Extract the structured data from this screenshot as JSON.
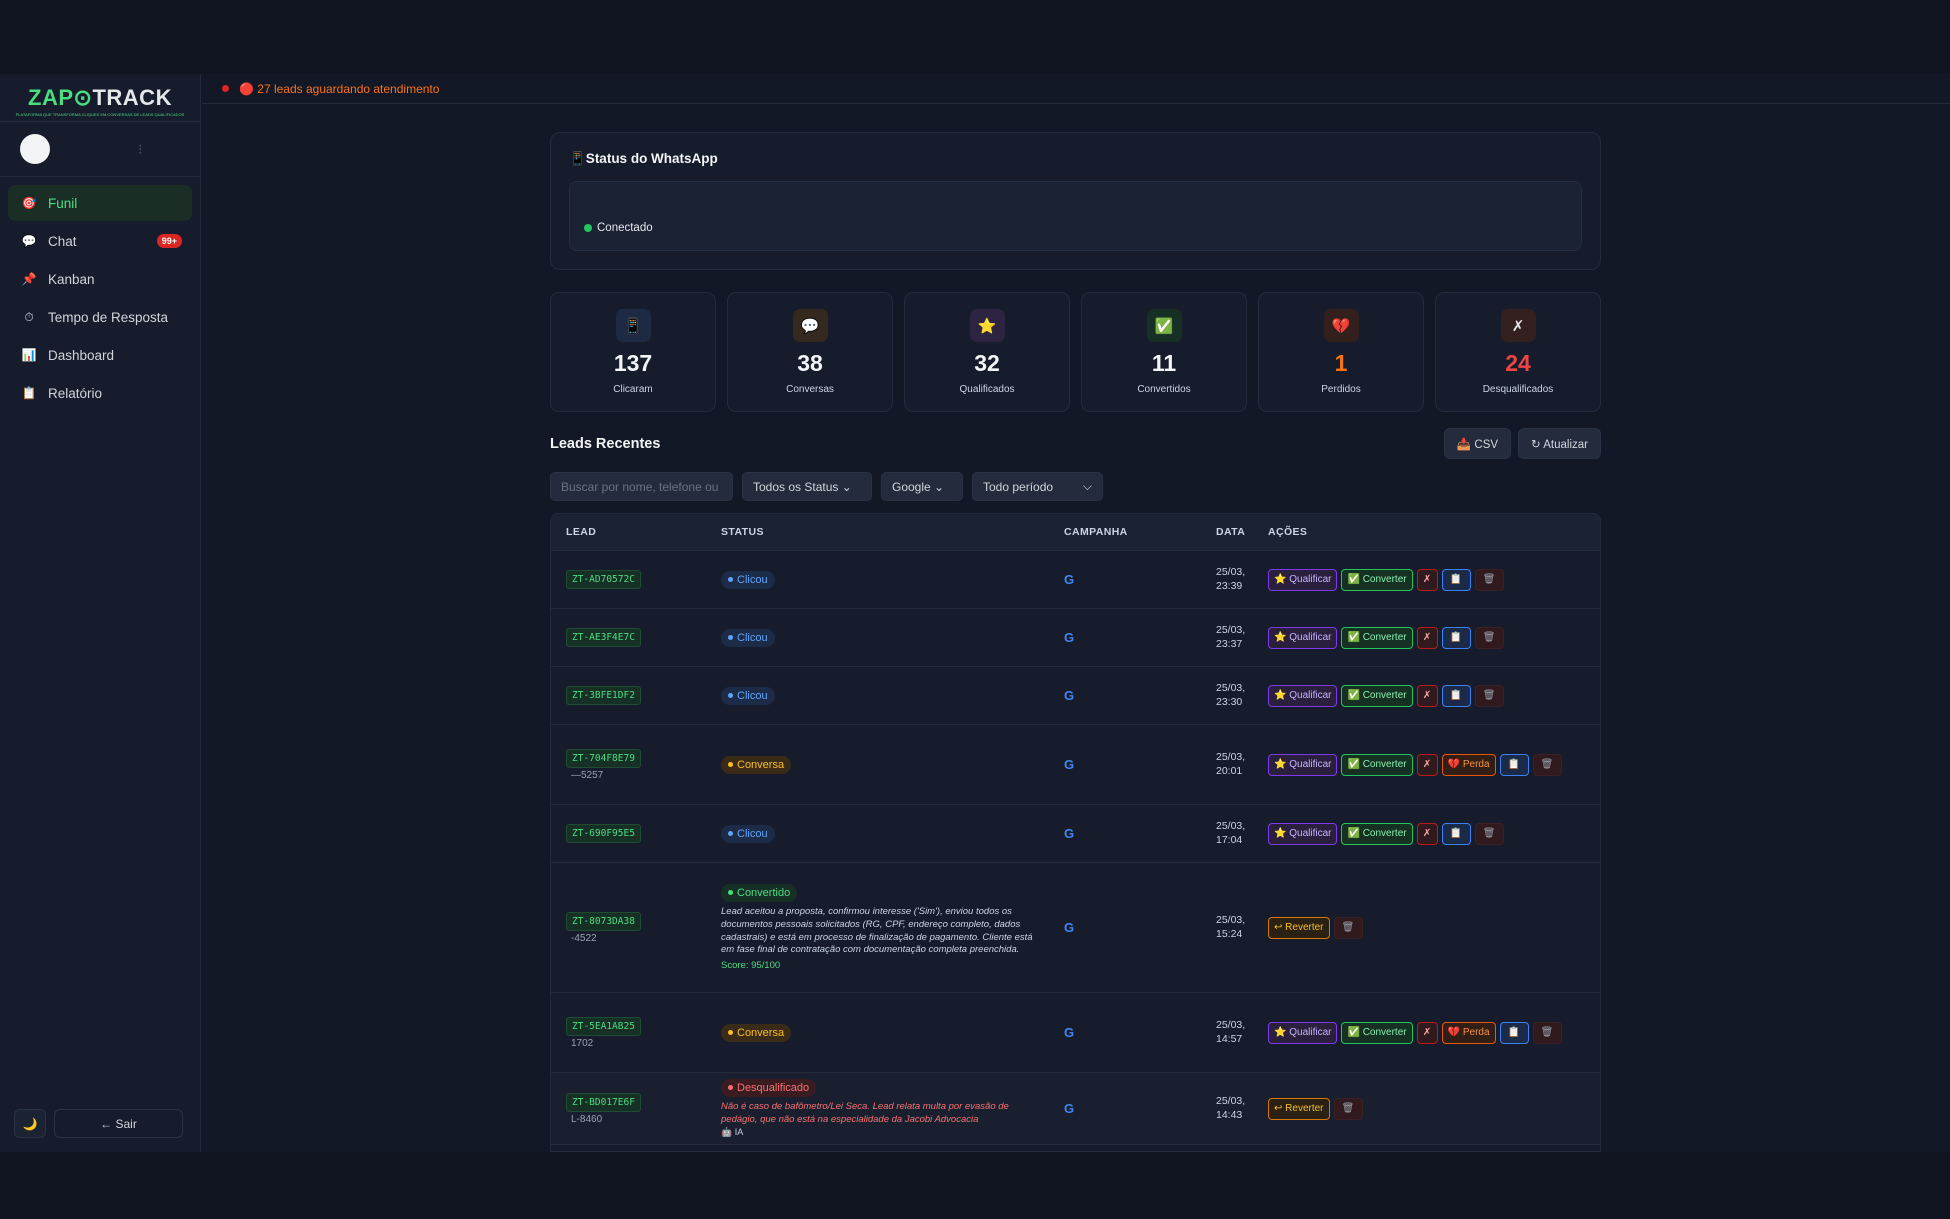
{
  "alert": {
    "text": "🔴 27 leads aguardando atendimento"
  },
  "sidebar": {
    "logo_left": "ZAP",
    "logo_right": "TRACK",
    "logo_tagline": "PLATAFORMA QUE TRANSFORMA CLIQUES EM CONVERSAS DE LEADS QUALIFICADOS",
    "items": [
      {
        "icon": "🎯",
        "label": "Funil",
        "active": true
      },
      {
        "icon": "💬",
        "label": "Chat",
        "badge": "99+"
      },
      {
        "icon": "📌",
        "label": "Kanban"
      },
      {
        "icon": "⏱",
        "label": "Tempo de Resposta"
      },
      {
        "icon": "📊",
        "label": "Dashboard"
      },
      {
        "icon": "📋",
        "label": "Relatório"
      }
    ],
    "theme_icon": "🌙",
    "logout": "← Sair"
  },
  "whatsapp": {
    "title": "📱Status do WhatsApp",
    "status": "Conectado"
  },
  "stats": [
    {
      "icon": "📱",
      "value": "137",
      "label": "Clicaram",
      "bg": "#1e2a44",
      "color": "#f3f4f6"
    },
    {
      "icon": "💬",
      "value": "38",
      "label": "Conversas",
      "bg": "#33291e",
      "color": "#f3f4f6"
    },
    {
      "icon": "⭐",
      "value": "32",
      "label": "Qualificados",
      "bg": "#2c2440",
      "color": "#f3f4f6"
    },
    {
      "icon": "✅",
      "value": "11",
      "label": "Convertidos",
      "bg": "#173026",
      "color": "#f3f4f6"
    },
    {
      "icon": "💔",
      "value": "1",
      "label": "Perdidos",
      "bg": "#33201c",
      "color": "#f97316"
    },
    {
      "icon": "✗",
      "value": "24",
      "label": "Desqualificados",
      "bg": "#33201f",
      "color": "#ef4444"
    }
  ],
  "leads": {
    "title": "Leads Recentes",
    "csv": "📥 CSV",
    "refresh": "↻ Atualizar",
    "search_placeholder": "Buscar por nome, telefone ou",
    "status_filter": "Todos os Status ⌄",
    "campaign_filter": "Google ⌄",
    "period_filter": "Todo período",
    "columns": [
      "LEAD",
      "STATUS",
      "CAMPANHA",
      "DATA",
      "AÇÕES"
    ],
    "rows": [
      {
        "id": "ZT-AD70572C",
        "name": "",
        "phone": "",
        "status": "Clicou",
        "kind": "clicou",
        "reason": "",
        "score": "",
        "ia": "",
        "camp": "",
        "date": "25/03,",
        "time": "23:39",
        "actions": "std"
      },
      {
        "id": "ZT-AE3F4E7C",
        "name": "",
        "phone": "",
        "status": "Clicou",
        "kind": "clicou",
        "reason": "",
        "score": "",
        "ia": "",
        "camp": "",
        "date": "25/03,",
        "time": "23:37",
        "actions": "std"
      },
      {
        "id": "ZT-3BFE1DF2",
        "name": "",
        "phone": "",
        "status": "Clicou",
        "kind": "clicou",
        "reason": "",
        "score": "",
        "ia": "",
        "camp": "",
        "date": "25/03,",
        "time": "23:30",
        "actions": "std"
      },
      {
        "id": "ZT-704F8E79",
        "name": "",
        "phone": "—5257",
        "status": "Conversa",
        "kind": "conversa",
        "reason": "",
        "score": "",
        "ia": "",
        "camp": "",
        "date": "25/03,",
        "time": "20:01",
        "actions": "perda"
      },
      {
        "id": "ZT-690F95E5",
        "name": "",
        "phone": "",
        "status": "Clicou",
        "kind": "clicou",
        "reason": "",
        "score": "",
        "ia": "",
        "camp": "",
        "date": "25/03,",
        "time": "17:04",
        "actions": "std"
      },
      {
        "id": "ZT-8073DA38",
        "name": "",
        "phone": "-4522",
        "status": "Convertido",
        "kind": "convertido",
        "reason": "Lead aceitou a proposta, confirmou interesse ('Sim'), enviou todos os documentos pessoais solicitados (RG, CPF, endereço completo, dados cadastrais) e está em processo de finalização de pagamento. Cliente está em fase final de contratação com documentação completa preenchida.",
        "score": "Score: 95/100",
        "ia": "",
        "camp": "",
        "date": "25/03,",
        "time": "15:24",
        "actions": "rev"
      },
      {
        "id": "ZT-5EA1AB25",
        "name": "",
        "phone": "1702",
        "status": "Conversa",
        "kind": "conversa",
        "reason": "",
        "score": "",
        "ia": "",
        "camp": "",
        "date": "25/03,",
        "time": "14:57",
        "actions": "perda"
      },
      {
        "id": "ZT-BD017E6F",
        "name": "",
        "phone": "L-8460",
        "status": "Desqualificado",
        "kind": "desq",
        "reason": "Não é caso de bafômetro/Lei Seca. Lead relata multa por evasão de pedágio, que não está na especialidade da Jacobi Advocacia",
        "score": "",
        "ia": "🤖 IA",
        "camp": "",
        "date": "25/03,",
        "time": "14:43",
        "actions": "rev"
      }
    ],
    "action_labels": {
      "qualificar": "⭐ Qualificar",
      "converter": "✅ Converter",
      "desq": "✗",
      "note": "📋",
      "delete": "🗑",
      "perda": "💔 Perda",
      "reverter": "↩ Reverter"
    },
    "campaign_icon": "G"
  }
}
